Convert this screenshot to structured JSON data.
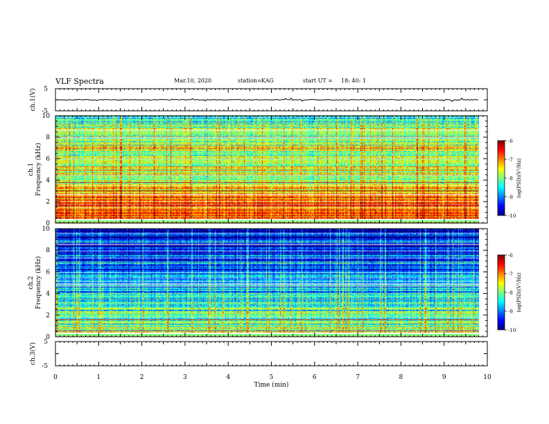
{
  "header": {
    "title": "VLF Spectra",
    "date": "Mar.10, 2020",
    "station_label": "station=",
    "station": "KAG",
    "start_label": "start UT =",
    "start_time": "18: 40: 1"
  },
  "chart_data": [
    {
      "type": "line",
      "panel": "ch1-waveform",
      "ylabel": "ch.1(V)",
      "ylim": [
        -5,
        5
      ],
      "yticks": [
        "5",
        "-5"
      ],
      "xlim": [
        0,
        10
      ],
      "series": [
        {
          "name": "ch.1",
          "level": 0
        }
      ]
    },
    {
      "type": "heatmap",
      "panel": "ch1-spectrogram",
      "ylabel_channel": "ch.1",
      "ylabel": "Frequency (kHz)",
      "ylim": [
        0,
        10
      ],
      "yticks": [
        "0",
        "2",
        "4",
        "6",
        "8",
        "10"
      ],
      "xlim": [
        0,
        10
      ],
      "data_extent_min": 9.8,
      "color_range": [
        -10,
        -6
      ],
      "mean_level_by_kHz": [
        -6.6,
        -7.0,
        -6.8,
        -7.3,
        -7.9,
        -7.6,
        -8.1,
        -7.5,
        -8.2,
        -8.0,
        -8.8
      ],
      "colorbar": {
        "label": "log(PSD)(V²/Hz)",
        "ticks": [
          "-6",
          "-7",
          "-8",
          "-9",
          "-10"
        ]
      }
    },
    {
      "type": "heatmap",
      "panel": "ch2-spectrogram",
      "ylabel_channel": "ch.2",
      "ylabel": "Frequency (kHz)",
      "ylim": [
        0,
        10
      ],
      "yticks": [
        "0",
        "2",
        "4",
        "6",
        "8",
        "10"
      ],
      "xlim": [
        0,
        10
      ],
      "data_extent_min": 9.8,
      "color_range": [
        -10,
        -6
      ],
      "mean_level_by_kHz": [
        -7.6,
        -7.9,
        -8.2,
        -8.4,
        -8.7,
        -9.0,
        -9.1,
        -9.2,
        -9.5,
        -9.6,
        -9.8
      ],
      "colorbar": {
        "label": "log(PSD)(V²/Hz)",
        "ticks": [
          "-6",
          "-7",
          "-8",
          "-9",
          "-10"
        ]
      }
    },
    {
      "type": "line",
      "panel": "ch3-waveform",
      "ylabel": "ch.3(V)",
      "ylim": [
        -5,
        5
      ],
      "yticks": [
        "5",
        "-5"
      ],
      "xlim": [
        0,
        10
      ],
      "xlabel": "Time (min)",
      "xticks": [
        "0",
        "1",
        "2",
        "3",
        "4",
        "5",
        "6",
        "7",
        "8",
        "9",
        "10"
      ],
      "series": []
    }
  ],
  "colors": {
    "colormap": [
      "#00007f",
      "#0000ff",
      "#007fff",
      "#00ffff",
      "#7fff7f",
      "#ffff00",
      "#ff7f00",
      "#ff0000",
      "#7f0000"
    ],
    "axis": "#000000",
    "background": "#ffffff"
  }
}
